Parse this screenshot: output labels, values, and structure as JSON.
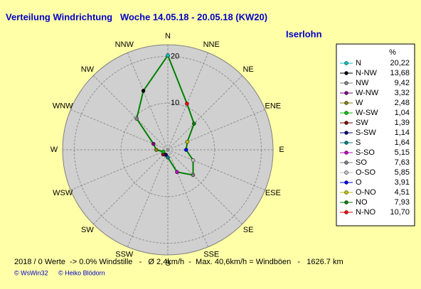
{
  "chart_data": {
    "type": "radar",
    "title": "Verteilung Windrichtung   Woche 14.05.18 - 20.05.18 (KW20)",
    "subtitle": "Iserlohn",
    "categories": [
      "N",
      "NNE",
      "NE",
      "ENE",
      "E",
      "ESE",
      "SE",
      "SSE",
      "S",
      "SSW",
      "SW",
      "WSW",
      "W",
      "WNW",
      "NW",
      "NNW"
    ],
    "values": [
      20.22,
      10.7,
      7.93,
      4.51,
      3.91,
      5.85,
      7.63,
      5.15,
      1.64,
      1.14,
      1.39,
      1.04,
      2.48,
      3.32,
      9.42,
      13.68
    ],
    "value_labels": [
      "20,22",
      "10,70",
      "7,93",
      "4,51",
      "3,91",
      "5,85",
      "7,63",
      "5,15",
      "1,64",
      "1,14",
      "1,39",
      "1,04",
      "2,48",
      "3,32",
      "9,42",
      "13,68"
    ],
    "legend_names": [
      "N",
      "N-NO",
      "NO",
      "O-NO",
      "O",
      "O-SO",
      "SO",
      "S-SO",
      "S",
      "S-SW",
      "SW",
      "W-SW",
      "W",
      "W-NW",
      "NW",
      "N-NW"
    ],
    "marker_colors": [
      "#00c0c0",
      "#ff0000",
      "#008000",
      "#c0c000",
      "#0000ff",
      "#c0c0c0",
      "#808080",
      "#c000c0",
      "#008080",
      "#000080",
      "#800000",
      "#00c000",
      "#808000",
      "#800080",
      "#808080",
      "#000000"
    ],
    "line_color": "#008000",
    "legend_header": "%",
    "rlim": [
      0,
      22.5
    ],
    "rticks": [
      10,
      20
    ],
    "footer": "2018 / 0 Werte  -> 0.0% Windstille   -   Ø 2,4km/h  -  Max. 40,6km/h = Windböen   -   1626.7 km",
    "credits": [
      "© WsWin32",
      "© Heiko Blödorn"
    ]
  }
}
